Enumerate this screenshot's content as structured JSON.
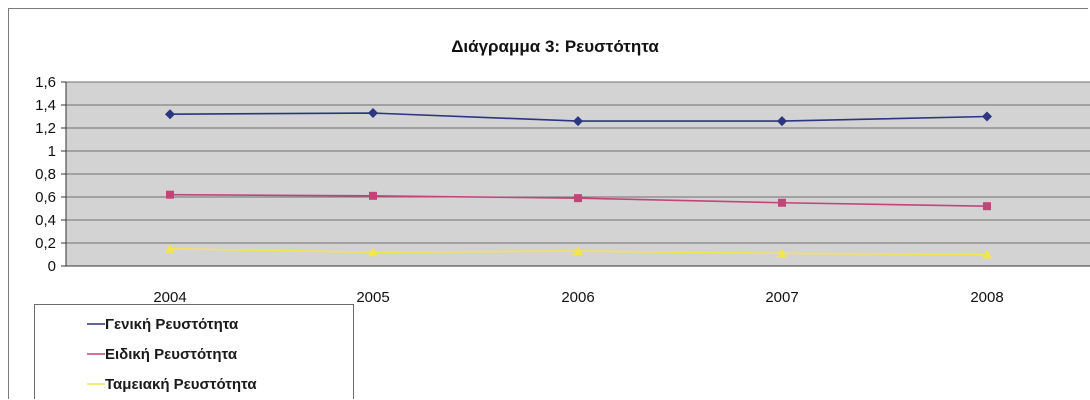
{
  "chart_data": {
    "type": "line",
    "title": "Διάγραμμα 3: Ρευστότητα",
    "xlabel": "",
    "ylabel": "",
    "categories": [
      "2004",
      "2005",
      "2006",
      "2007",
      "2008"
    ],
    "ylim": [
      0,
      1.6
    ],
    "y_ticks": [
      "0",
      "0,2",
      "0,4",
      "0,6",
      "0,8",
      "1",
      "1,2",
      "1,4",
      "1,6"
    ],
    "grid": true,
    "legend_position": "bottom-left",
    "series": [
      {
        "name": "Γενική Ρευστότητα",
        "values": [
          1.32,
          1.33,
          1.26,
          1.26,
          1.3
        ],
        "color": "#2b3580",
        "marker": "diamond"
      },
      {
        "name": "Ειδική Ρευστότητα",
        "values": [
          0.62,
          0.61,
          0.59,
          0.55,
          0.52
        ],
        "color": "#c2457a",
        "marker": "square"
      },
      {
        "name": "Ταμειακή Ρευστότητα",
        "values": [
          0.15,
          0.12,
          0.13,
          0.11,
          0.1
        ],
        "color": "#f2e64a",
        "marker": "triangle"
      }
    ],
    "plot_background": "#d3d3d3"
  }
}
